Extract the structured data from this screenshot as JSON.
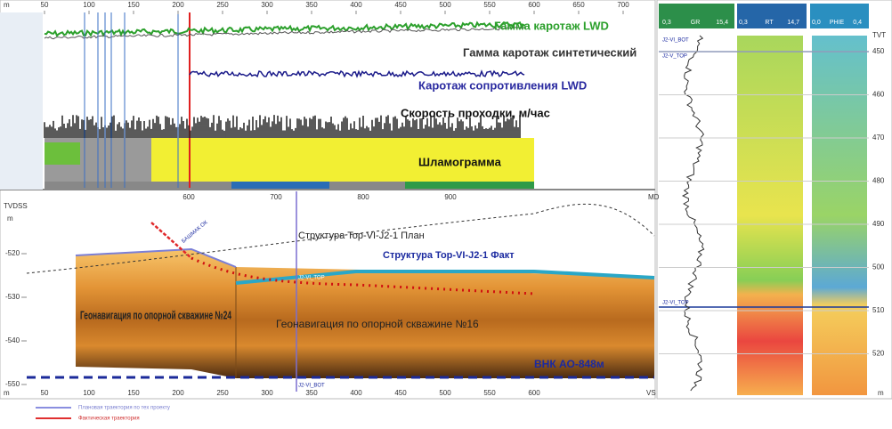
{
  "top_axis": {
    "ticks": [
      50,
      100,
      150,
      200,
      250,
      300,
      350,
      400,
      450,
      500,
      550,
      600,
      650,
      700
    ],
    "unit": "m"
  },
  "top_curves": [
    "Гамма каротаж LWD",
    "Гамма каротаж синтетический",
    "Каротаж сопротивления LWD",
    "Скорость проходки, м/час",
    "Шламограмма"
  ],
  "md_axis": {
    "label": "MD",
    "ticks": [
      600,
      700,
      800,
      900
    ]
  },
  "vs_axis": {
    "label": "VS",
    "unit": "m",
    "ticks": [
      50,
      100,
      150,
      200,
      250,
      300,
      350,
      400,
      450,
      500,
      550,
      600
    ]
  },
  "tvdss_axis": {
    "label": "TVDSS",
    "unit": "m",
    "ticks": [
      -520,
      -530,
      -540,
      -550
    ]
  },
  "section": {
    "plan": "Структура Top-VI-J2-1 План",
    "fact": "Структура Top-VI-J2-1 Факт",
    "zone_left": "Геонавигация по опорной скважине №24",
    "zone_right": "Геонавигация по опорной скважине №16",
    "owc": "ВНК АО-848м",
    "markers": [
      "J2-VI_TOP",
      "J2-VI_BOT",
      "БАШМАК ОК"
    ]
  },
  "tracks": [
    {
      "name": "GR",
      "min": "0,3",
      "max": "15,4"
    },
    {
      "name": "RT",
      "min": "0,3",
      "max": "14,7"
    },
    {
      "name": "PHIE",
      "min": "0,0",
      "max": "0,4"
    }
  ],
  "track_tops": [
    "J2-VI_BOT",
    "J2-V_TOP",
    "J2-VI_TOP"
  ],
  "tvt_axis": {
    "label": "TVT",
    "unit": "m",
    "ticks": [
      450,
      460,
      470,
      480,
      490,
      500,
      510,
      520
    ]
  },
  "legend": [
    "Плановая траектория по тех проекту",
    "Фактическая траектория"
  ]
}
